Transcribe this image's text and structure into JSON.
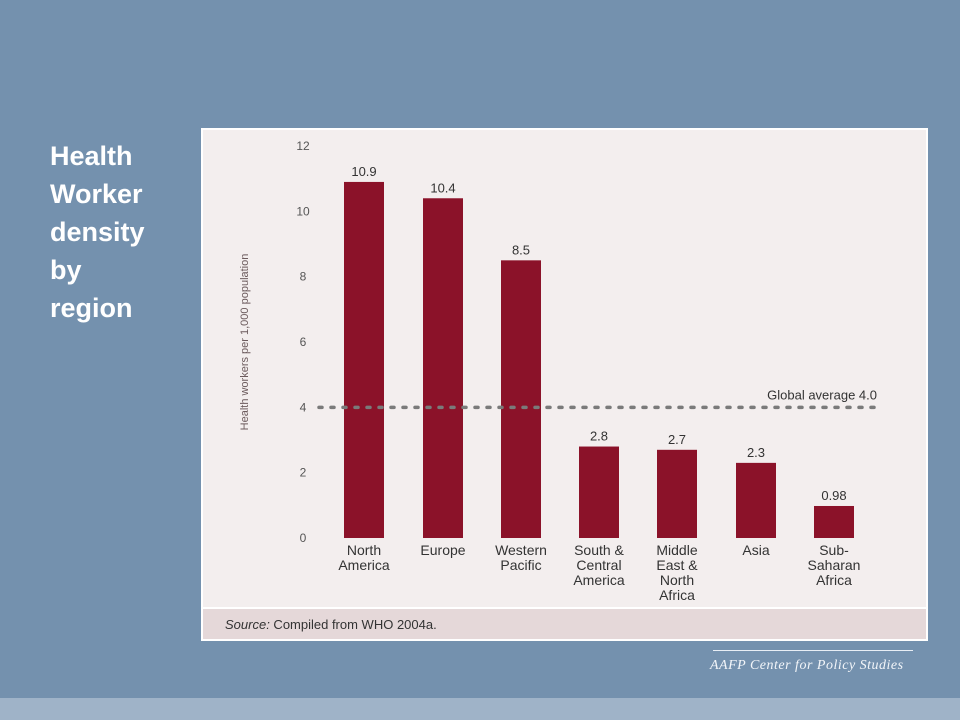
{
  "slide": {
    "title_lines": [
      "Health",
      "Worker",
      "density",
      "by",
      "region"
    ]
  },
  "source": {
    "label": "Source:",
    "text": " Compiled from WHO 2004a."
  },
  "footer": {
    "text": "AAFP Center for Policy Studies"
  },
  "colors": {
    "background": "#7491ae",
    "bar": "#8b1229",
    "average_line": "#7a7a7a"
  },
  "chart_data": {
    "type": "bar",
    "title": "",
    "xlabel": "",
    "ylabel": "Health workers per 1,000 population",
    "ylim": [
      0,
      12
    ],
    "yticks": [
      0,
      2,
      4,
      6,
      8,
      10,
      12
    ],
    "categories": [
      [
        "North",
        "America"
      ],
      [
        "Europe"
      ],
      [
        "Western",
        "Pacific"
      ],
      [
        "South &",
        "Central",
        "America"
      ],
      [
        "Middle",
        "East &",
        "North",
        "Africa"
      ],
      [
        "Asia"
      ],
      [
        "Sub-",
        "Saharan",
        "Africa"
      ]
    ],
    "values": [
      10.9,
      10.4,
      8.5,
      2.8,
      2.7,
      2.3,
      0.98
    ],
    "value_labels": [
      "10.9",
      "10.4",
      "8.5",
      "2.8",
      "2.7",
      "2.3",
      "0.98"
    ],
    "reference_line": {
      "value": 4.0,
      "label": "Global average 4.0",
      "style": "dotted"
    },
    "grid": false,
    "legend": "none"
  }
}
